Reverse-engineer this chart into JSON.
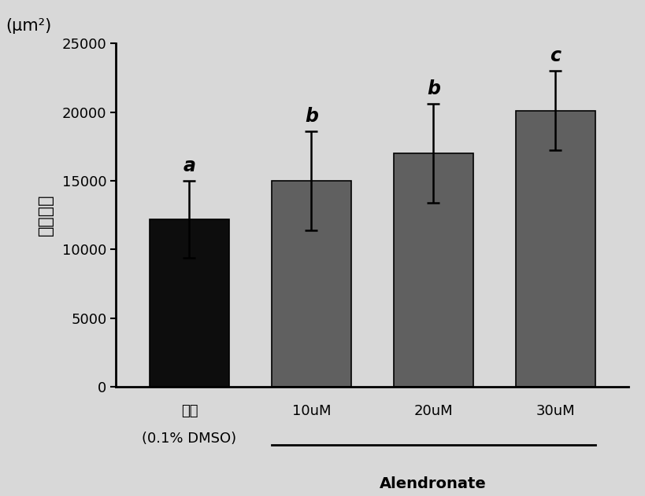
{
  "categories_line1": [
    "对照",
    "10uM",
    "20uM",
    "30uM"
  ],
  "categories_line2": [
    "(0.1% DMSO)",
    "",
    "",
    ""
  ],
  "values": [
    12200,
    15000,
    17000,
    20100
  ],
  "errors": [
    2800,
    3600,
    3600,
    2900
  ],
  "bar_colors": [
    "#0d0d0d",
    "#606060",
    "#606060",
    "#606060"
  ],
  "letters": [
    "a",
    "b",
    "b",
    "c"
  ],
  "ylabel_top": "(μm²)",
  "ylabel_main": "矿化面积",
  "ylim": [
    0,
    25000
  ],
  "yticks": [
    0,
    5000,
    10000,
    15000,
    20000,
    25000
  ],
  "alendronate_label": "Alendronate",
  "background_color": "#d8d8d8",
  "bar_width": 0.65,
  "letter_fontsize": 17,
  "tick_fontsize": 13,
  "ylabel_fontsize": 15,
  "xlabel_fontsize": 14,
  "ytick_fontsize": 13
}
